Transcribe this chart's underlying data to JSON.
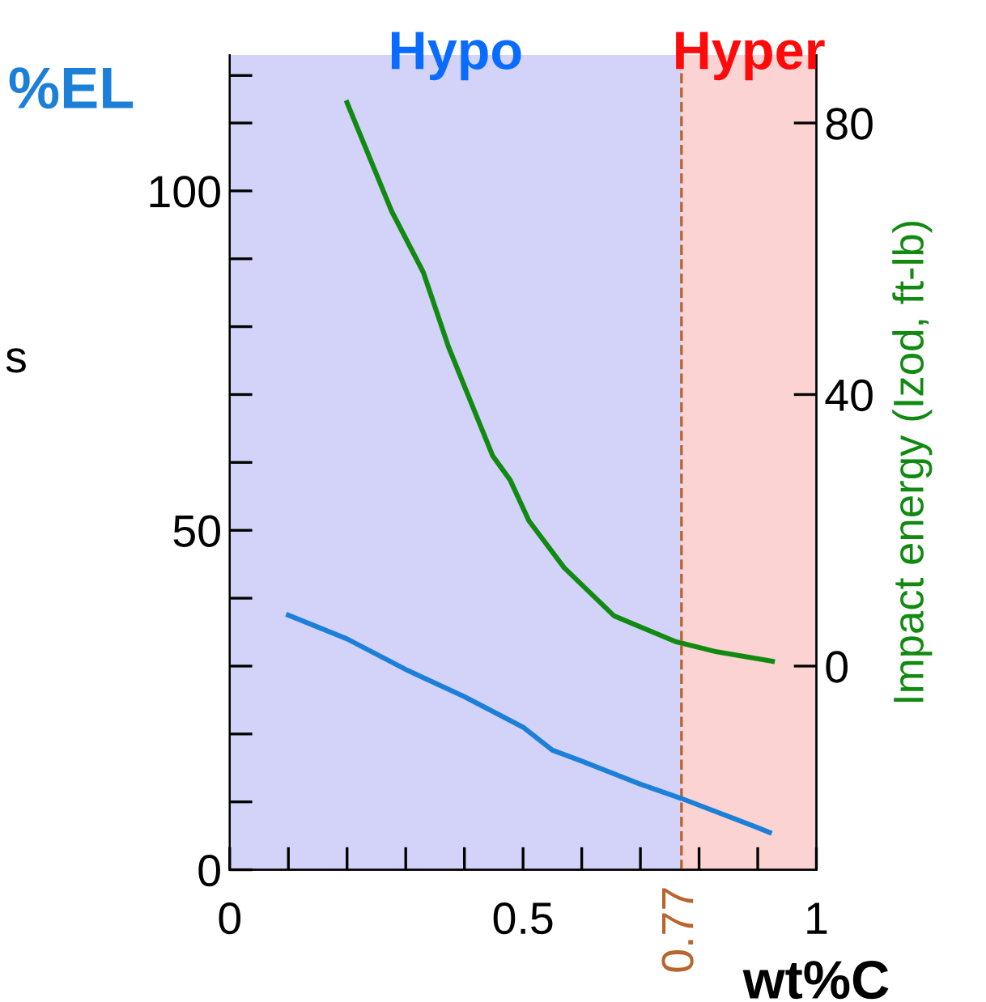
{
  "chart_data": {
    "type": "line",
    "xlabel": "wt%C",
    "ylabel": "%EL",
    "y2label": "Impact energy (Izod, ft-lb)",
    "annotations": [
      "s"
    ],
    "xlim": [
      0,
      1
    ],
    "xticks": [
      0,
      {
        "value": 0.1,
        "label": null
      },
      {
        "value": 0.2,
        "label": null
      },
      {
        "value": 0.3,
        "label": null
      },
      {
        "value": 0.4,
        "label": null
      },
      0.5,
      {
        "value": 0.6,
        "label": null
      },
      {
        "value": 0.7,
        "label": null
      },
      {
        "value": 0.8,
        "label": null
      },
      {
        "value": 0.9,
        "label": null
      },
      1
    ],
    "ylim": [
      0,
      120
    ],
    "yticks": [
      0,
      {
        "value": 10,
        "label": null
      },
      {
        "value": 20,
        "label": null
      },
      {
        "value": 30,
        "label": null
      },
      {
        "value": 40,
        "label": null
      },
      50,
      {
        "value": 60,
        "label": null
      },
      {
        "value": 70,
        "label": null
      },
      {
        "value": 80,
        "label": null
      },
      {
        "value": 90,
        "label": null
      },
      100,
      {
        "value": 110,
        "label": null
      },
      {
        "value": 117,
        "label": null
      }
    ],
    "y2lim": [
      -30,
      90
    ],
    "y2ticks": [
      0,
      40,
      80
    ],
    "grid": false,
    "legend": false,
    "marker": "none",
    "line_style": "solid",
    "bands": [
      {
        "axis": "x",
        "from": 0,
        "to": 0.77,
        "label": "Hypo",
        "color": "#d3d3fa"
      },
      {
        "axis": "x",
        "from": 0.77,
        "to": 1,
        "label": "Hyper",
        "color": "#fbd3d3"
      }
    ],
    "ref_lines": [
      {
        "axis": "x",
        "value": 0.77,
        "label": "0.77",
        "color": "#b8652e",
        "line_style": "dashed"
      }
    ],
    "series": [
      {
        "color": "#1c7fd8",
        "x": [
          0.1,
          0.2,
          0.3,
          0.4,
          0.5,
          0.55,
          0.6,
          0.7,
          0.77,
          0.9,
          0.92
        ],
        "values": [
          37.5,
          34,
          29.5,
          25.5,
          21,
          17.6,
          16,
          12.6,
          10.5,
          6.2,
          5.5
        ]
      },
      {
        "color": "#128a12",
        "axis": "y2",
        "x": [
          0.2,
          0.276,
          0.33,
          0.373,
          0.448,
          0.478,
          0.51,
          0.57,
          0.655,
          0.76,
          0.83,
          0.925
        ],
        "values": [
          83,
          67,
          58,
          47,
          31,
          27.4,
          21.4,
          14.5,
          7.4,
          3.6,
          2.1,
          0.7
        ]
      }
    ]
  }
}
